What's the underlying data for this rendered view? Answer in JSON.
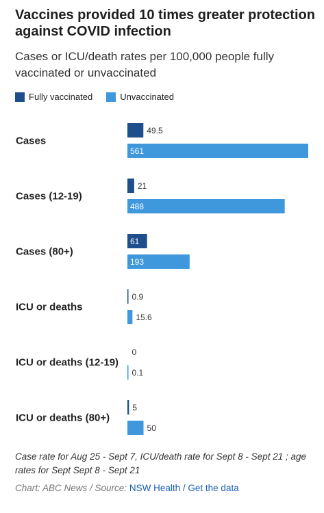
{
  "header": {
    "title": "Vaccines provided 10 times greater protection against COVID infection",
    "subtitle": "Cases or ICU/death rates per 100,000 people fully vaccinated or unvaccinated"
  },
  "legend": {
    "items": [
      {
        "label": "Fully vaccinated",
        "color": "#1f4e8c"
      },
      {
        "label": "Unvaccinated",
        "color": "#3f98dc"
      }
    ]
  },
  "chart_data": {
    "type": "bar",
    "orientation": "horizontal",
    "categories": [
      "Cases",
      "Cases (12-19)",
      "Cases (80+)",
      "ICU or deaths",
      "ICU or deaths (12-19)",
      "ICU or deaths (80+)"
    ],
    "series": [
      {
        "name": "Fully vaccinated",
        "values": [
          49.5,
          21,
          61,
          0.9,
          0,
          5
        ],
        "labels": [
          "49.5",
          "21",
          "61",
          "0.9",
          "0",
          "5"
        ],
        "color": "#1f4e8c"
      },
      {
        "name": "Unvaccinated",
        "values": [
          561,
          488,
          193,
          15.6,
          0.1,
          50
        ],
        "labels": [
          "561",
          "488",
          "193",
          "15.6",
          "0.1",
          "50"
        ],
        "color": "#3f98dc"
      }
    ],
    "xlim": [
      0,
      561
    ],
    "grid": false,
    "legend_position": "top-left"
  },
  "footer": {
    "note": "Case rate for Aug 25 - Sept 7, ICU/death rate for Sept 8 - Sept 21 ; age rates for Sept Sept 8 - Sept 21",
    "source_prefix": "Chart: ABC News / Source:",
    "source_link": "NSW Health",
    "separator": "/",
    "data_link": "Get the data"
  }
}
